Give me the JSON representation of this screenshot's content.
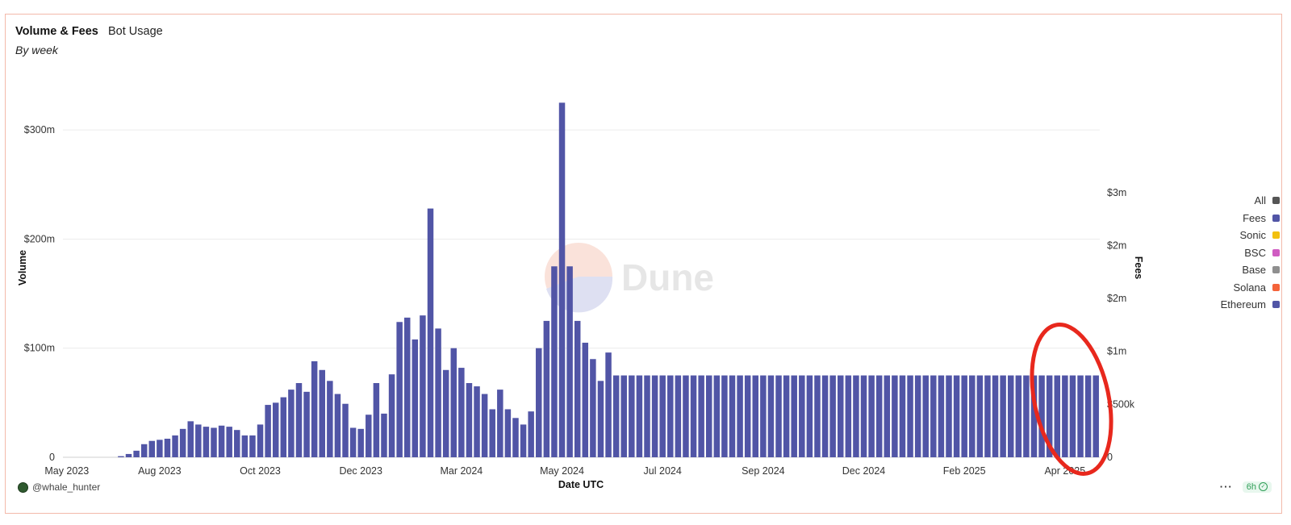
{
  "header": {
    "title": "Volume & Fees",
    "tab": "Bot Usage",
    "subtitle": "By week"
  },
  "watermark": "Dune",
  "footer": {
    "user": "@whale_hunter",
    "menu": "···",
    "freshness": "6h"
  },
  "legend": [
    {
      "label": "All",
      "color": "#555555"
    },
    {
      "label": "Fees",
      "color": "#5155a6"
    },
    {
      "label": "Sonic",
      "color": "#f2c010"
    },
    {
      "label": "BSC",
      "color": "#d05cc2"
    },
    {
      "label": "Base",
      "color": "#8f8f8f"
    },
    {
      "label": "Solana",
      "color": "#f4633a"
    },
    {
      "label": "Ethereum",
      "color": "#5155a6"
    }
  ],
  "annotation": {
    "color": "#e8281d"
  },
  "chart_data": {
    "type": "bar",
    "stacked": true,
    "title": "Volume & Fees",
    "xlabel": "Date UTC",
    "ylabel": "Volume",
    "y2label": "Fees",
    "ylim": [
      0,
      360
    ],
    "y2lim": [
      0,
      3.71
    ],
    "yticks": [
      {
        "v": 0,
        "label": "0"
      },
      {
        "v": 100,
        "label": "$100m"
      },
      {
        "v": 200,
        "label": "$200m"
      },
      {
        "v": 300,
        "label": "$300m"
      }
    ],
    "y2ticks": [
      {
        "v": 0,
        "label": "0"
      },
      {
        "v": 0.5,
        "label": "$500k"
      },
      {
        "v": 1,
        "label": "$1m"
      },
      {
        "v": 1.5,
        "label": "$2m"
      },
      {
        "v": 2,
        "label": "$2m"
      },
      {
        "v": 2.5,
        "label": "$3m"
      }
    ],
    "xticks": [
      {
        "i": 0,
        "label": "May 2023"
      },
      {
        "i": 12,
        "label": "Aug 2023"
      },
      {
        "i": 25,
        "label": "Oct 2023"
      },
      {
        "i": 38,
        "label": "Dec 2023"
      },
      {
        "i": 51,
        "label": "Mar 2024"
      },
      {
        "i": 64,
        "label": "May 2024"
      },
      {
        "i": 77,
        "label": "Jul 2024"
      },
      {
        "i": 90,
        "label": "Sep 2024"
      },
      {
        "i": 103,
        "label": "Dec 2024"
      },
      {
        "i": 116,
        "label": "Feb 2025"
      },
      {
        "i": 129,
        "label": "Apr 2025"
      }
    ],
    "series": [
      {
        "name": "Ethereum",
        "color": "#5155a6",
        "values": [
          0,
          0,
          0,
          0,
          0,
          0,
          0,
          1,
          3,
          6,
          12,
          15,
          16,
          17,
          20,
          26,
          33,
          30,
          28,
          27,
          29,
          28,
          25,
          20,
          20,
          30,
          48,
          50,
          55,
          62,
          68,
          60,
          88,
          80,
          70,
          58,
          49,
          27,
          26,
          39,
          68,
          40,
          76,
          124,
          128,
          108,
          130,
          228,
          118,
          80,
          100,
          82,
          68,
          65,
          58,
          44,
          62,
          44,
          36,
          30,
          42,
          100,
          125,
          175,
          325,
          175,
          125,
          105,
          90,
          70,
          96,
          75,
          75,
          75,
          75,
          75,
          75,
          75,
          75,
          75,
          75,
          75,
          75,
          75,
          75,
          75,
          75,
          75,
          75,
          75,
          75,
          75,
          75,
          75,
          75,
          75,
          75,
          75,
          75,
          75,
          75,
          75,
          75,
          75,
          75,
          75,
          75,
          75,
          75,
          75,
          75,
          75,
          75,
          75,
          75,
          75,
          75,
          75,
          75,
          75,
          75,
          75,
          75,
          75,
          75,
          75,
          75,
          75,
          75,
          75,
          75,
          75,
          75,
          75
        ]
      },
      {
        "name": "Solana",
        "values": [
          0,
          0,
          0,
          0,
          0,
          0,
          0,
          0,
          0,
          0,
          0,
          0,
          0,
          0,
          0,
          0,
          0,
          0,
          0,
          0,
          0,
          0,
          0,
          0,
          0,
          0,
          0,
          0,
          0,
          0,
          0,
          0,
          0,
          0,
          0,
          0,
          0,
          0,
          0,
          0,
          0,
          0,
          0,
          0,
          0,
          0,
          0,
          0,
          0,
          0,
          0,
          0,
          0,
          0,
          0,
          0,
          0,
          0,
          0,
          0,
          0,
          0,
          0,
          0,
          0,
          0,
          0,
          0,
          0,
          0,
          0,
          0,
          0,
          0,
          0,
          0,
          0,
          0,
          0,
          0,
          0,
          0,
          0,
          0,
          0,
          0,
          0,
          0,
          0,
          0,
          0,
          0,
          0,
          0,
          0,
          0,
          0,
          0,
          0,
          0,
          0,
          0,
          0,
          0,
          0,
          0,
          0,
          0,
          0,
          0,
          0,
          0,
          0,
          0,
          0,
          0,
          0,
          0,
          0,
          0,
          0,
          0,
          0,
          0,
          0,
          0,
          0,
          0,
          0,
          0,
          0,
          0,
          0,
          0,
          0,
          0,
          0,
          0,
          0
        ]
      }
    ]
  }
}
